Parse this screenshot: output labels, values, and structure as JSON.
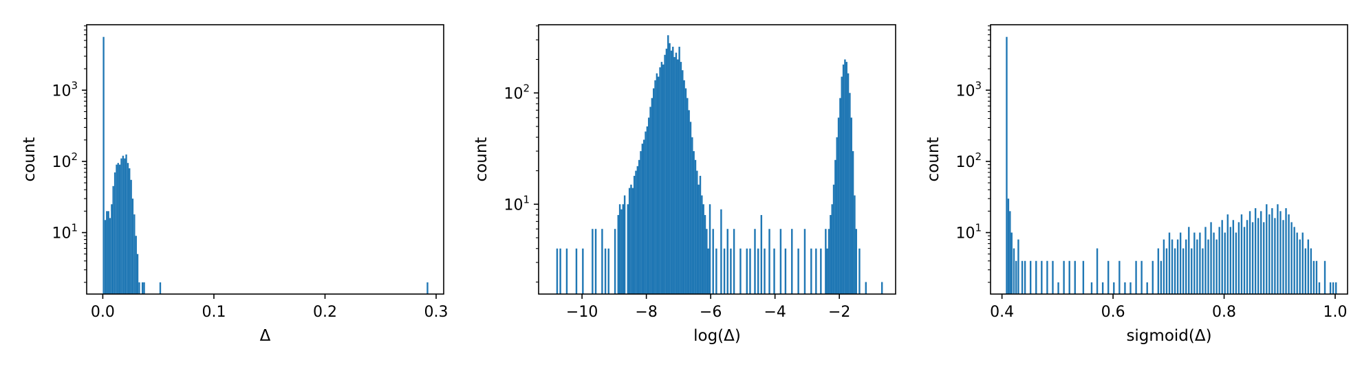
{
  "colors": {
    "bar": "#1f77b4",
    "axes": "#000000",
    "background": "#ffffff"
  },
  "chart_data": [
    {
      "type": "bar",
      "xlabel": "Δ",
      "ylabel": "count",
      "yscale": "log",
      "xlim": [
        -0.0145,
        0.3068
      ],
      "ylim": [
        1.37,
        8300
      ],
      "xticks": [
        {
          "value": 0.0,
          "label": "0.0"
        },
        {
          "value": 0.1,
          "label": "0.1"
        },
        {
          "value": 0.2,
          "label": "0.2"
        },
        {
          "value": 0.3,
          "label": "0.3"
        }
      ],
      "yticks": [
        {
          "value": 10,
          "label": "10",
          "exp": "1"
        },
        {
          "value": 100,
          "label": "10",
          "exp": "2"
        },
        {
          "value": 1000,
          "label": "10",
          "exp": "3"
        }
      ],
      "bin_width": 0.00146,
      "bins": [
        [
          0.0,
          5600
        ],
        [
          0.0015,
          15
        ],
        [
          0.0029,
          20
        ],
        [
          0.0044,
          20
        ],
        [
          0.0058,
          16
        ],
        [
          0.0073,
          25
        ],
        [
          0.0087,
          45
        ],
        [
          0.0102,
          70
        ],
        [
          0.0117,
          90
        ],
        [
          0.0131,
          95
        ],
        [
          0.0146,
          90
        ],
        [
          0.016,
          110
        ],
        [
          0.0175,
          120
        ],
        [
          0.019,
          110
        ],
        [
          0.0204,
          125
        ],
        [
          0.0219,
          95
        ],
        [
          0.0233,
          80
        ],
        [
          0.0248,
          55
        ],
        [
          0.0262,
          30
        ],
        [
          0.0277,
          18
        ],
        [
          0.0292,
          9
        ],
        [
          0.0306,
          5
        ],
        [
          0.0321,
          2
        ],
        [
          0.035,
          2
        ],
        [
          0.0365,
          2
        ],
        [
          0.051,
          2
        ],
        [
          0.2915,
          2
        ]
      ]
    },
    {
      "type": "bar",
      "xlabel": "log(Δ)",
      "ylabel": "count",
      "yscale": "log",
      "xlim": [
        -11.35,
        -0.25
      ],
      "ylim": [
        1.56,
        410
      ],
      "xticks": [
        {
          "value": -10,
          "label": "−10"
        },
        {
          "value": -8,
          "label": "−8"
        },
        {
          "value": -6,
          "label": "−6"
        },
        {
          "value": -4,
          "label": "−4"
        },
        {
          "value": -2,
          "label": "−2"
        }
      ],
      "yticks": [
        {
          "value": 10,
          "label": "10",
          "exp": "1"
        },
        {
          "value": 100,
          "label": "10",
          "exp": "2"
        }
      ],
      "bin_width": 0.052,
      "bins": [
        [
          -10.8,
          4
        ],
        [
          -10.7,
          4
        ],
        [
          -10.5,
          4
        ],
        [
          -10.2,
          4
        ],
        [
          -10.0,
          4
        ],
        [
          -9.7,
          6
        ],
        [
          -9.6,
          6
        ],
        [
          -9.4,
          6
        ],
        [
          -9.3,
          4
        ],
        [
          -9.2,
          4
        ],
        [
          -9.0,
          6
        ],
        [
          -8.9,
          8
        ],
        [
          -8.85,
          10
        ],
        [
          -8.8,
          9
        ],
        [
          -8.75,
          10
        ],
        [
          -8.7,
          12
        ],
        [
          -8.6,
          10
        ],
        [
          -8.55,
          14
        ],
        [
          -8.5,
          15
        ],
        [
          -8.45,
          14
        ],
        [
          -8.4,
          18
        ],
        [
          -8.35,
          20
        ],
        [
          -8.3,
          22
        ],
        [
          -8.25,
          25
        ],
        [
          -8.2,
          30
        ],
        [
          -8.15,
          35
        ],
        [
          -8.1,
          38
        ],
        [
          -8.05,
          45
        ],
        [
          -8.0,
          50
        ],
        [
          -7.95,
          60
        ],
        [
          -7.9,
          75
        ],
        [
          -7.85,
          90
        ],
        [
          -7.8,
          110
        ],
        [
          -7.75,
          130
        ],
        [
          -7.7,
          150
        ],
        [
          -7.65,
          140
        ],
        [
          -7.6,
          170
        ],
        [
          -7.55,
          190
        ],
        [
          -7.5,
          180
        ],
        [
          -7.45,
          220
        ],
        [
          -7.4,
          250
        ],
        [
          -7.35,
          330
        ],
        [
          -7.3,
          280
        ],
        [
          -7.25,
          240
        ],
        [
          -7.2,
          260
        ],
        [
          -7.15,
          210
        ],
        [
          -7.1,
          230
        ],
        [
          -7.05,
          200
        ],
        [
          -7.0,
          260
        ],
        [
          -6.95,
          190
        ],
        [
          -6.9,
          160
        ],
        [
          -6.85,
          130
        ],
        [
          -6.8,
          110
        ],
        [
          -6.75,
          90
        ],
        [
          -6.7,
          70
        ],
        [
          -6.65,
          55
        ],
        [
          -6.6,
          40
        ],
        [
          -6.55,
          30
        ],
        [
          -6.5,
          25
        ],
        [
          -6.45,
          20
        ],
        [
          -6.4,
          15
        ],
        [
          -6.35,
          18
        ],
        [
          -6.3,
          12
        ],
        [
          -6.25,
          10
        ],
        [
          -6.2,
          8
        ],
        [
          -6.15,
          6
        ],
        [
          -6.1,
          4
        ],
        [
          -6.05,
          10
        ],
        [
          -5.95,
          6
        ],
        [
          -5.85,
          4
        ],
        [
          -5.7,
          9
        ],
        [
          -5.6,
          4
        ],
        [
          -5.5,
          6
        ],
        [
          -5.4,
          4
        ],
        [
          -5.3,
          6
        ],
        [
          -5.1,
          4
        ],
        [
          -4.9,
          4
        ],
        [
          -4.8,
          4
        ],
        [
          -4.65,
          6
        ],
        [
          -4.55,
          4
        ],
        [
          -4.45,
          8
        ],
        [
          -4.35,
          4
        ],
        [
          -4.2,
          6
        ],
        [
          -4.05,
          4
        ],
        [
          -3.85,
          6
        ],
        [
          -3.7,
          4
        ],
        [
          -3.5,
          6
        ],
        [
          -3.3,
          4
        ],
        [
          -3.1,
          6
        ],
        [
          -2.9,
          4
        ],
        [
          -2.75,
          4
        ],
        [
          -2.6,
          4
        ],
        [
          -2.45,
          6
        ],
        [
          -2.4,
          4
        ],
        [
          -2.35,
          6
        ],
        [
          -2.3,
          8
        ],
        [
          -2.25,
          10
        ],
        [
          -2.2,
          15
        ],
        [
          -2.15,
          25
        ],
        [
          -2.1,
          40
        ],
        [
          -2.05,
          60
        ],
        [
          -2.0,
          90
        ],
        [
          -1.95,
          140
        ],
        [
          -1.9,
          180
        ],
        [
          -1.85,
          200
        ],
        [
          -1.8,
          190
        ],
        [
          -1.75,
          150
        ],
        [
          -1.7,
          100
        ],
        [
          -1.65,
          60
        ],
        [
          -1.6,
          30
        ],
        [
          -1.55,
          12
        ],
        [
          -1.5,
          6
        ],
        [
          -1.4,
          4
        ],
        [
          -1.2,
          2
        ],
        [
          -0.7,
          2
        ]
      ]
    },
    {
      "type": "bar",
      "xlabel": "sigmoid(Δ)",
      "ylabel": "count",
      "yscale": "log",
      "xlim": [
        0.3794,
        1.0223
      ],
      "ylim": [
        1.37,
        8300
      ],
      "xticks": [
        {
          "value": 0.4,
          "label": "0.4"
        },
        {
          "value": 0.6,
          "label": "0.6"
        },
        {
          "value": 0.8,
          "label": "0.8"
        },
        {
          "value": 1.0,
          "label": "1.0"
        }
      ],
      "yticks": [
        {
          "value": 10,
          "label": "10",
          "exp": "1"
        },
        {
          "value": 100,
          "label": "10",
          "exp": "2"
        },
        {
          "value": 1000,
          "label": "10",
          "exp": "3"
        }
      ],
      "bin_width": 0.00296,
      "bins": [
        [
          0.407,
          5600
        ],
        [
          0.41,
          30
        ],
        [
          0.413,
          20
        ],
        [
          0.416,
          10
        ],
        [
          0.42,
          6
        ],
        [
          0.424,
          4
        ],
        [
          0.428,
          8
        ],
        [
          0.435,
          4
        ],
        [
          0.44,
          4
        ],
        [
          0.45,
          4
        ],
        [
          0.46,
          4
        ],
        [
          0.47,
          4
        ],
        [
          0.48,
          4
        ],
        [
          0.49,
          4
        ],
        [
          0.5,
          2
        ],
        [
          0.51,
          4
        ],
        [
          0.52,
          4
        ],
        [
          0.53,
          4
        ],
        [
          0.545,
          4
        ],
        [
          0.56,
          2
        ],
        [
          0.57,
          6
        ],
        [
          0.58,
          2
        ],
        [
          0.59,
          4
        ],
        [
          0.6,
          2
        ],
        [
          0.61,
          4
        ],
        [
          0.62,
          2
        ],
        [
          0.63,
          2
        ],
        [
          0.64,
          4
        ],
        [
          0.65,
          4
        ],
        [
          0.66,
          2
        ],
        [
          0.67,
          4
        ],
        [
          0.68,
          6
        ],
        [
          0.685,
          4
        ],
        [
          0.69,
          8
        ],
        [
          0.695,
          6
        ],
        [
          0.7,
          10
        ],
        [
          0.705,
          8
        ],
        [
          0.71,
          6
        ],
        [
          0.715,
          8
        ],
        [
          0.72,
          10
        ],
        [
          0.725,
          6
        ],
        [
          0.73,
          8
        ],
        [
          0.735,
          12
        ],
        [
          0.74,
          6
        ],
        [
          0.745,
          10
        ],
        [
          0.75,
          8
        ],
        [
          0.755,
          10
        ],
        [
          0.76,
          6
        ],
        [
          0.765,
          12
        ],
        [
          0.77,
          8
        ],
        [
          0.775,
          14
        ],
        [
          0.78,
          10
        ],
        [
          0.785,
          8
        ],
        [
          0.79,
          12
        ],
        [
          0.795,
          15
        ],
        [
          0.8,
          10
        ],
        [
          0.805,
          18
        ],
        [
          0.81,
          12
        ],
        [
          0.815,
          15
        ],
        [
          0.82,
          10
        ],
        [
          0.825,
          14
        ],
        [
          0.83,
          18
        ],
        [
          0.835,
          12
        ],
        [
          0.84,
          15
        ],
        [
          0.845,
          20
        ],
        [
          0.85,
          14
        ],
        [
          0.855,
          22
        ],
        [
          0.86,
          16
        ],
        [
          0.865,
          20
        ],
        [
          0.87,
          14
        ],
        [
          0.875,
          25
        ],
        [
          0.88,
          18
        ],
        [
          0.885,
          22
        ],
        [
          0.89,
          16
        ],
        [
          0.895,
          25
        ],
        [
          0.9,
          20
        ],
        [
          0.905,
          15
        ],
        [
          0.91,
          22
        ],
        [
          0.915,
          18
        ],
        [
          0.92,
          14
        ],
        [
          0.925,
          12
        ],
        [
          0.93,
          10
        ],
        [
          0.935,
          8
        ],
        [
          0.94,
          10
        ],
        [
          0.945,
          6
        ],
        [
          0.95,
          8
        ],
        [
          0.955,
          6
        ],
        [
          0.96,
          4
        ],
        [
          0.965,
          4
        ],
        [
          0.97,
          2
        ],
        [
          0.98,
          4
        ],
        [
          0.99,
          2
        ],
        [
          0.995,
          2
        ],
        [
          1.0,
          2
        ]
      ]
    }
  ]
}
